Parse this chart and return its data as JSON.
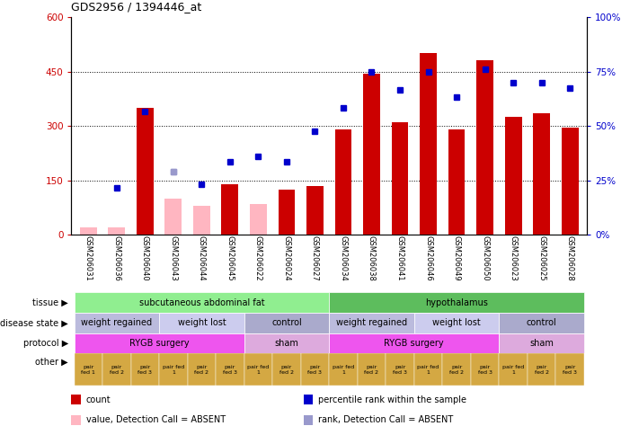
{
  "title": "GDS2956 / 1394446_at",
  "samples": [
    "GSM206031",
    "GSM206036",
    "GSM206040",
    "GSM206043",
    "GSM206044",
    "GSM206045",
    "GSM206022",
    "GSM206024",
    "GSM206027",
    "GSM206034",
    "GSM206038",
    "GSM206041",
    "GSM206046",
    "GSM206049",
    "GSM206050",
    "GSM206023",
    "GSM206025",
    "GSM206028"
  ],
  "count_values": [
    20,
    20,
    350,
    null,
    null,
    140,
    null,
    125,
    135,
    290,
    445,
    310,
    500,
    290,
    480,
    325,
    335,
    295
  ],
  "count_absent": [
    true,
    true,
    false,
    true,
    true,
    false,
    true,
    false,
    false,
    false,
    false,
    false,
    false,
    false,
    false,
    false,
    false,
    false
  ],
  "absent_count_values": [
    20,
    20,
    null,
    100,
    80,
    null,
    85,
    null,
    null,
    null,
    null,
    null,
    null,
    null,
    null,
    null,
    null,
    null
  ],
  "percentile_values": [
    null,
    130,
    340,
    175,
    140,
    200,
    215,
    200,
    285,
    350,
    450,
    400,
    450,
    380,
    455,
    420,
    420,
    405
  ],
  "percentile_absent": [
    true,
    false,
    false,
    true,
    false,
    false,
    false,
    false,
    false,
    false,
    false,
    false,
    false,
    false,
    false,
    false,
    false,
    false
  ],
  "absent_percentile_values": [
    null,
    null,
    null,
    175,
    null,
    null,
    null,
    null,
    null,
    null,
    null,
    null,
    null,
    null,
    null,
    null,
    null,
    null
  ],
  "ylim_left": [
    0,
    600
  ],
  "ylim_right": [
    0,
    100
  ],
  "yticks_left": [
    0,
    150,
    300,
    450,
    600
  ],
  "yticks_right": [
    0,
    25,
    50,
    75,
    100
  ],
  "ytick_labels_left": [
    "0",
    "150",
    "300",
    "450",
    "600"
  ],
  "ytick_labels_right": [
    "0%",
    "25%",
    "50%",
    "75%",
    "100%"
  ],
  "hlines": [
    150,
    300,
    450
  ],
  "tissue_groups": [
    {
      "label": "subcutaneous abdominal fat",
      "start": 0,
      "end": 9,
      "color": "#90EE90"
    },
    {
      "label": "hypothalamus",
      "start": 9,
      "end": 18,
      "color": "#5DBD5D"
    }
  ],
  "disease_groups": [
    {
      "label": "weight regained",
      "start": 0,
      "end": 3,
      "color": "#BBBBDD"
    },
    {
      "label": "weight lost",
      "start": 3,
      "end": 6,
      "color": "#CCCCEE"
    },
    {
      "label": "control",
      "start": 6,
      "end": 9,
      "color": "#AAAACC"
    },
    {
      "label": "weight regained",
      "start": 9,
      "end": 12,
      "color": "#BBBBDD"
    },
    {
      "label": "weight lost",
      "start": 12,
      "end": 15,
      "color": "#CCCCEE"
    },
    {
      "label": "control",
      "start": 15,
      "end": 18,
      "color": "#AAAACC"
    }
  ],
  "protocol_groups": [
    {
      "label": "RYGB surgery",
      "start": 0,
      "end": 6,
      "color": "#EE55EE"
    },
    {
      "label": "sham",
      "start": 6,
      "end": 9,
      "color": "#DDAADD"
    },
    {
      "label": "RYGB surgery",
      "start": 9,
      "end": 15,
      "color": "#EE55EE"
    },
    {
      "label": "sham",
      "start": 15,
      "end": 18,
      "color": "#DDAADD"
    }
  ],
  "other_color": "#D4A843",
  "bar_color_present": "#CC0000",
  "bar_color_absent": "#FFB6C1",
  "dot_color_present": "#0000CC",
  "dot_color_absent": "#9999CC",
  "left_label_color": "#CC0000",
  "right_label_color": "#0000CC",
  "legend_items": [
    {
      "color": "#CC0000",
      "label": "count"
    },
    {
      "color": "#0000CC",
      "label": "percentile rank within the sample"
    },
    {
      "color": "#FFB6C1",
      "label": "value, Detection Call = ABSENT"
    },
    {
      "color": "#9999CC",
      "label": "rank, Detection Call = ABSENT"
    }
  ]
}
